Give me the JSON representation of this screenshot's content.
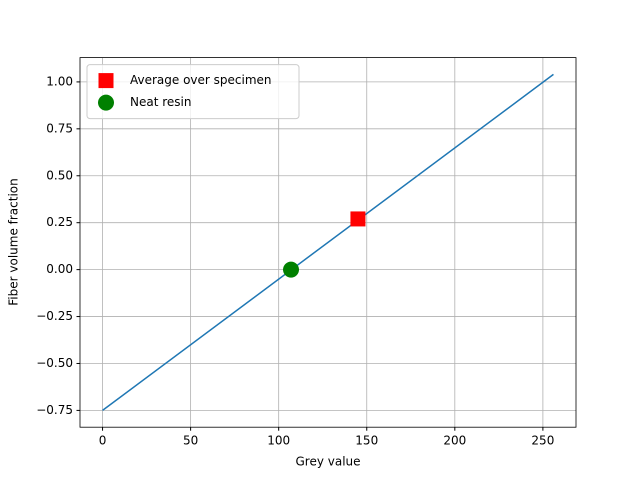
{
  "chart_data": {
    "type": "line",
    "xlabel": "Grey value",
    "ylabel": "Fiber volume fraction",
    "xlim": [
      -12.8,
      268.8
    ],
    "ylim": [
      -0.8395,
      1.1295
    ],
    "xticks": [
      0,
      50,
      100,
      150,
      200,
      250
    ],
    "yticks": [
      {
        "value": -0.75,
        "label": "−0.75"
      },
      {
        "value": -0.5,
        "label": "−0.50"
      },
      {
        "value": -0.25,
        "label": "−0.25"
      },
      {
        "value": 0,
        "label": "0.00"
      },
      {
        "value": 0.25,
        "label": "0.25"
      },
      {
        "value": 0.5,
        "label": "0.50"
      },
      {
        "value": 0.75,
        "label": "0.75"
      },
      {
        "value": 1,
        "label": "1.00"
      }
    ],
    "grid": true,
    "legend": "upper-left",
    "series": [
      {
        "kind": "line",
        "color": "#1f77b4",
        "x": [
          0,
          256
        ],
        "values": [
          -0.75,
          1.04
        ]
      },
      {
        "kind": "marker",
        "marker": "square",
        "name": "Average over specimen",
        "color": "#ff0000",
        "x": [
          145
        ],
        "values": [
          0.27
        ]
      },
      {
        "kind": "marker",
        "marker": "circle",
        "name": "Neat resin",
        "color": "#008000",
        "x": [
          107
        ],
        "values": [
          0
        ]
      }
    ]
  }
}
